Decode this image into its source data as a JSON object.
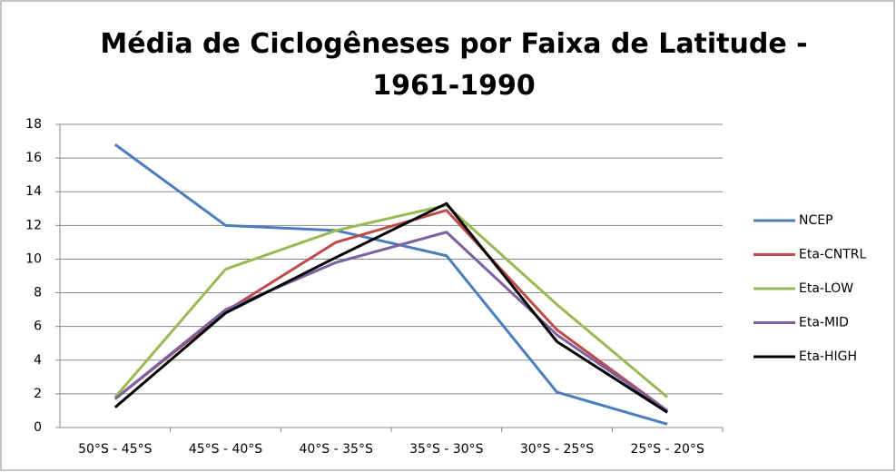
{
  "chart_data": {
    "type": "line",
    "title": "Média de Ciclogêneses por Faixa de Latitude - 1961-1990",
    "categories": [
      "50°S - 45°S",
      "45°S - 40°S",
      "40°S - 35°S",
      "35°S - 30°S",
      "30°S - 25°S",
      "25°S - 20°S"
    ],
    "series": [
      {
        "name": "NCEP",
        "color": "#4a7ebb",
        "values": [
          16.8,
          12.0,
          11.7,
          10.2,
          2.1,
          0.2
        ]
      },
      {
        "name": "Eta-CNTRL",
        "color": "#be4b48",
        "values": [
          1.7,
          6.9,
          11.0,
          12.9,
          5.8,
          1.0
        ]
      },
      {
        "name": "Eta-LOW",
        "color": "#98b954",
        "values": [
          1.8,
          9.4,
          11.7,
          13.2,
          7.3,
          1.8
        ]
      },
      {
        "name": "Eta-MID",
        "color": "#7d60a0",
        "values": [
          1.7,
          7.0,
          9.8,
          11.6,
          5.5,
          1.0
        ]
      },
      {
        "name": "Eta-HIGH",
        "color": "#000000",
        "values": [
          1.2,
          6.8,
          10.1,
          13.3,
          5.1,
          0.9
        ]
      }
    ],
    "ylim": [
      0,
      18
    ],
    "yticks": [
      0,
      2,
      4,
      6,
      8,
      10,
      12,
      14,
      16,
      18
    ],
    "grid": true,
    "legend": "right"
  }
}
